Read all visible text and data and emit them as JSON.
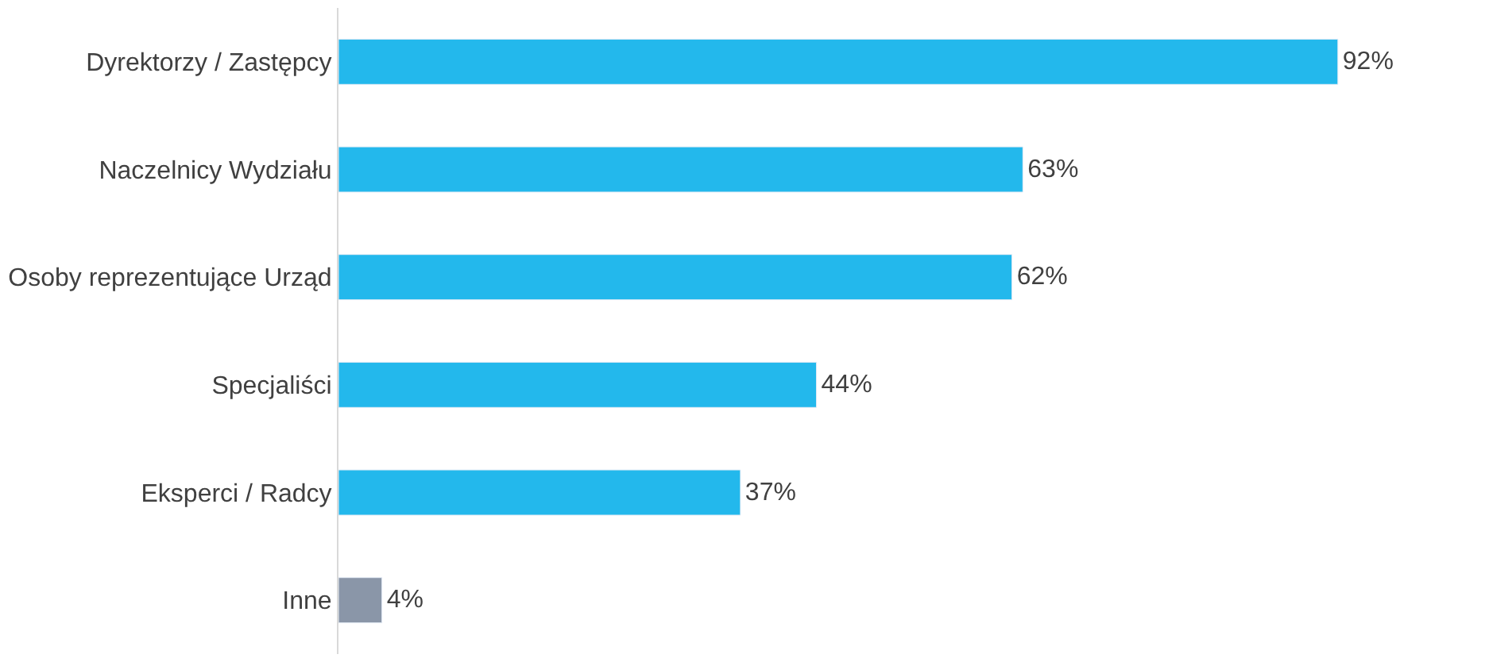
{
  "chart_data": {
    "type": "bar",
    "orientation": "horizontal",
    "categories": [
      "Dyrektorzy / Zastępcy",
      "Naczelnicy Wydziału",
      "Osoby reprezentujące Urząd",
      "Specjaliści",
      "Eksperci / Radcy",
      "Inne"
    ],
    "values": [
      92,
      63,
      62,
      44,
      37,
      4
    ],
    "colors": [
      "#23b8ec",
      "#23b8ec",
      "#23b8ec",
      "#23b8ec",
      "#23b8ec",
      "#8a96a8"
    ],
    "value_labels": [
      "92%",
      "63%",
      "62%",
      "44%",
      "37%",
      "4%"
    ],
    "tick_labels": "y"
  }
}
